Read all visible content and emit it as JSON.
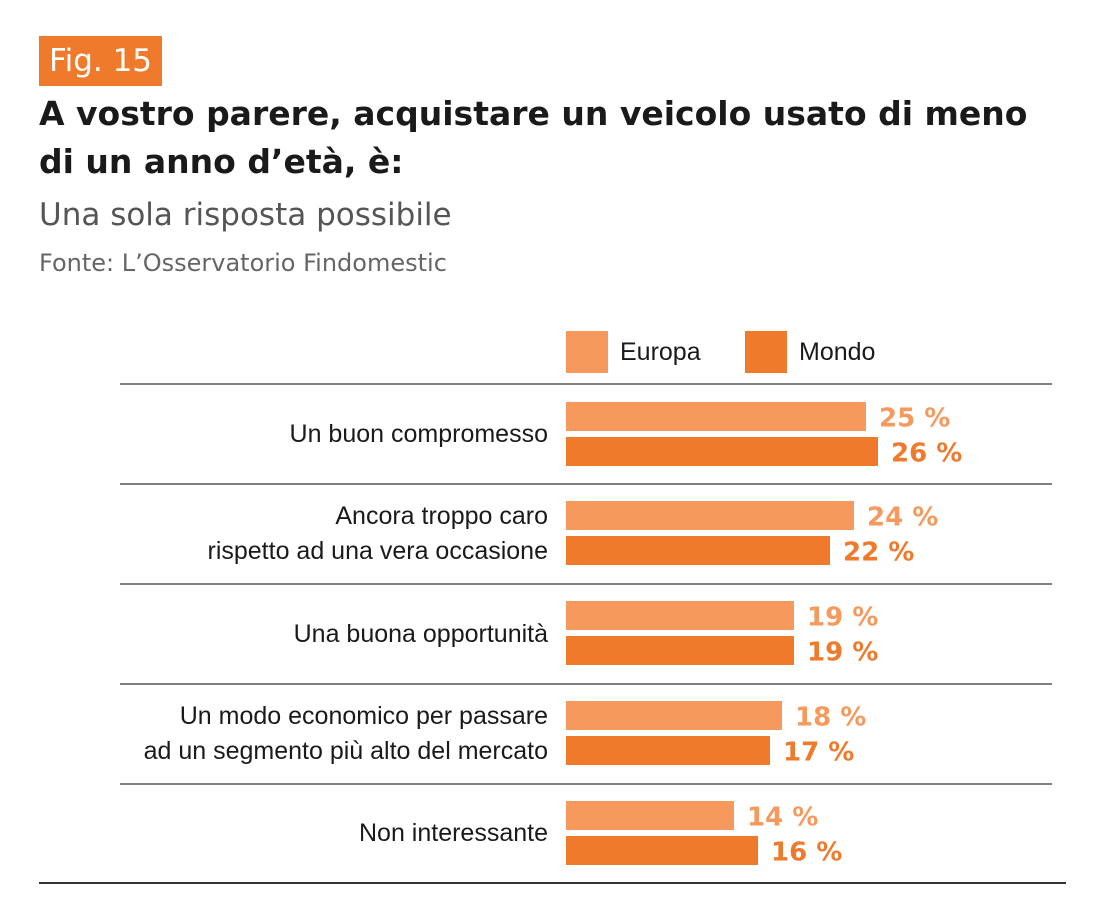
{
  "figure_label": "Fig. 15",
  "chart_data": {
    "type": "bar",
    "orientation": "horizontal",
    "title": "A vostro parere, acquistare un veicolo usato di meno di un anno d’età, è:",
    "subtitle": "Una sola risposta possibile",
    "source": "Fonte: L’Osservatorio Findomestic",
    "unit": "%",
    "categories": [
      "Un buon compromesso",
      "Ancora troppo caro\nrispetto ad una vera occasione",
      "Una buona opportunità",
      "Un modo economico per passare\nad un segmento più alto del mercato",
      "Non interessante"
    ],
    "series": [
      {
        "name": "Europa",
        "color": "#f5995d",
        "values": [
          25,
          24,
          19,
          18,
          14
        ],
        "labels": [
          "25 %",
          "24 %",
          "19 %",
          "18 %",
          "14 %"
        ]
      },
      {
        "name": "Mondo",
        "color": "#f07a2c",
        "values": [
          26,
          22,
          19,
          17,
          16
        ],
        "labels": [
          "26 %",
          "22 %",
          "19 %",
          "17 %",
          "16 %"
        ]
      }
    ],
    "legend_position": "top-right",
    "grid": false
  }
}
